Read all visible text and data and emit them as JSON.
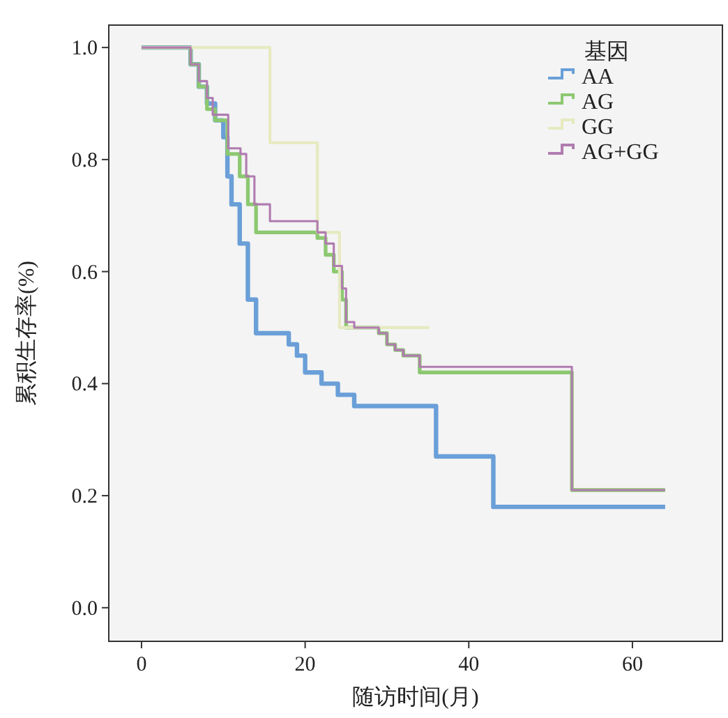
{
  "chart_data": {
    "type": "step",
    "xlabel": "随访时间(月)",
    "ylabel": "累积生存率(%)",
    "legend_title": "基因",
    "legend": "top right",
    "grid": false,
    "xlim": [
      -4,
      71
    ],
    "ylim": [
      -0.06,
      1.04
    ],
    "xticks": [
      0,
      20,
      40,
      60
    ],
    "yticks": [
      {
        "value": 0,
        "label": "0.0"
      },
      {
        "value": 0.2,
        "label": "0.2"
      },
      {
        "value": 0.4,
        "label": "0.4"
      },
      {
        "value": 0.6,
        "label": "0.6"
      },
      {
        "value": 0.8,
        "label": "0.8"
      },
      {
        "value": 1,
        "label": "1.0"
      }
    ],
    "series": [
      {
        "name": "AA",
        "color": "#6a9fd8",
        "x": [
          0,
          6,
          7,
          8,
          9,
          10,
          10.5,
          11,
          12,
          13,
          14,
          18,
          19,
          20,
          22,
          24,
          26,
          36,
          43,
          64
        ],
        "values": [
          1,
          0.97,
          0.93,
          0.9,
          0.87,
          0.84,
          0.77,
          0.72,
          0.65,
          0.55,
          0.49,
          0.47,
          0.45,
          0.42,
          0.4,
          0.38,
          0.36,
          0.27,
          0.18,
          0.18
        ]
      },
      {
        "name": "AG",
        "color": "#8cc870",
        "x": [
          0,
          6,
          7,
          8,
          9,
          10.5,
          12,
          13,
          14,
          21.5,
          22.5,
          23.5,
          24.5,
          25,
          26,
          29,
          30,
          31,
          32,
          34,
          52.6,
          64
        ],
        "values": [
          1,
          0.97,
          0.93,
          0.89,
          0.87,
          0.81,
          0.77,
          0.72,
          0.67,
          0.66,
          0.63,
          0.6,
          0.55,
          0.5,
          0.5,
          0.49,
          0.47,
          0.46,
          0.45,
          0.42,
          0.21,
          0.21
        ]
      },
      {
        "name": "GG",
        "color": "#e6eac0",
        "x": [
          0,
          15.7,
          21.5,
          24.2,
          35.2
        ],
        "values": [
          1,
          0.83,
          0.67,
          0.5,
          0.5
        ]
      },
      {
        "name": "AG+GG",
        "color": "#b07cb0",
        "x": [
          0,
          6,
          7,
          8,
          8.7,
          10.6,
          12.1,
          12.8,
          13.8,
          15.7,
          21.5,
          22.5,
          23.5,
          24.5,
          25,
          26,
          29,
          30,
          31,
          32,
          34,
          52.6,
          64
        ],
        "values": [
          1,
          0.97,
          0.94,
          0.91,
          0.88,
          0.82,
          0.81,
          0.77,
          0.72,
          0.69,
          0.67,
          0.65,
          0.61,
          0.57,
          0.51,
          0.5,
          0.49,
          0.47,
          0.46,
          0.45,
          0.43,
          0.21,
          0.21
        ]
      }
    ]
  }
}
